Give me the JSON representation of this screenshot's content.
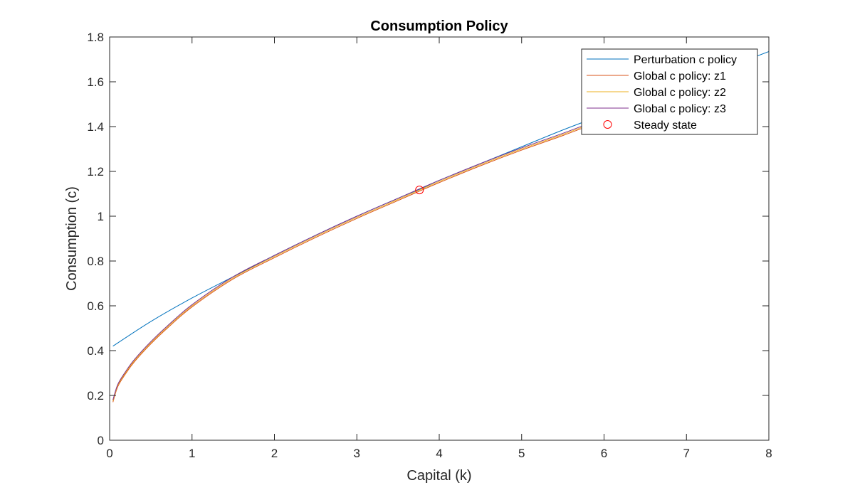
{
  "chart_data": {
    "type": "line",
    "title": "Consumption Policy",
    "xlabel": "Capital (k)",
    "ylabel": "Consumption (c)",
    "xlim": [
      0,
      8
    ],
    "ylim": [
      0,
      1.8
    ],
    "xticks": [
      0,
      1,
      2,
      3,
      4,
      5,
      6,
      7,
      8
    ],
    "xtick_labels": [
      "0",
      "1",
      "2",
      "3",
      "4",
      "5",
      "6",
      "7",
      "8"
    ],
    "yticks": [
      0,
      0.2,
      0.4,
      0.6,
      0.8,
      1,
      1.2,
      1.4,
      1.6,
      1.8
    ],
    "ytick_labels": [
      "0",
      "0.2",
      "0.4",
      "0.6",
      "0.8",
      "1",
      "1.2",
      "1.4",
      "1.6",
      "1.8"
    ],
    "grid": false,
    "legend_position": "top-right",
    "series": [
      {
        "name": "Perturbation c policy",
        "color": "#0072BD",
        "x": [
          0.04,
          0.5,
          1,
          1.5,
          2,
          2.5,
          3,
          3.5,
          3.76,
          4,
          4.5,
          5,
          5.5,
          6,
          6.5,
          7,
          7.5,
          8
        ],
        "y": [
          0.42,
          0.53,
          0.635,
          0.73,
          0.825,
          0.915,
          1.0,
          1.08,
          1.12,
          1.16,
          1.235,
          1.31,
          1.385,
          1.455,
          1.525,
          1.595,
          1.665,
          1.735
        ]
      },
      {
        "name": "Global c policy: z1",
        "color": "#D95319",
        "x": [
          0.04,
          0.1,
          0.2,
          0.3,
          0.5,
          0.7,
          1,
          1.5,
          2,
          2.5,
          3,
          3.5,
          3.76,
          4,
          4.5,
          5,
          5.5,
          6
        ],
        "y": [
          0.17,
          0.24,
          0.3,
          0.35,
          0.43,
          0.5,
          0.595,
          0.72,
          0.815,
          0.905,
          0.99,
          1.07,
          1.112,
          1.15,
          1.225,
          1.295,
          1.36,
          1.43
        ]
      },
      {
        "name": "Global c policy: z2",
        "color": "#EDB120",
        "x": [
          0.04,
          0.1,
          0.2,
          0.3,
          0.5,
          0.7,
          1,
          1.5,
          2,
          2.5,
          3,
          3.5,
          3.76,
          4,
          4.5,
          5,
          5.5,
          6
        ],
        "y": [
          0.175,
          0.245,
          0.305,
          0.355,
          0.435,
          0.505,
          0.6,
          0.725,
          0.82,
          0.91,
          0.995,
          1.075,
          1.117,
          1.155,
          1.23,
          1.3,
          1.365,
          1.435
        ]
      },
      {
        "name": "Global c policy: z3",
        "color": "#7E2F8E",
        "x": [
          0.04,
          0.1,
          0.2,
          0.3,
          0.5,
          0.7,
          1,
          1.5,
          2,
          2.5,
          3,
          3.5,
          3.76,
          4,
          4.5,
          5,
          5.5,
          6
        ],
        "y": [
          0.18,
          0.25,
          0.31,
          0.36,
          0.44,
          0.51,
          0.605,
          0.73,
          0.825,
          0.915,
          1.0,
          1.08,
          1.122,
          1.16,
          1.235,
          1.305,
          1.37,
          1.44
        ]
      }
    ],
    "markers": [
      {
        "name": "Steady state",
        "color": "#FF0000",
        "shape": "circle",
        "x": 3.76,
        "y": 1.117
      }
    ]
  }
}
